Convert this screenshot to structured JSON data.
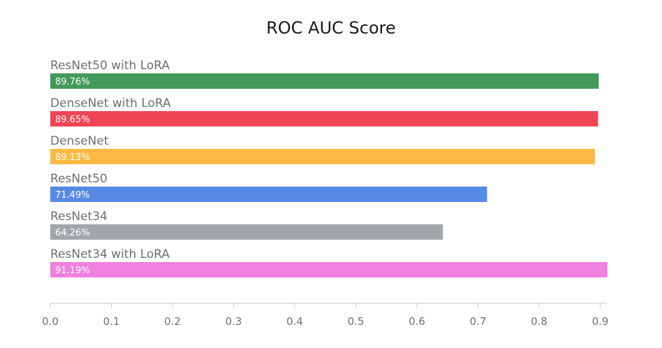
{
  "chart_data": {
    "type": "bar",
    "orientation": "horizontal",
    "title": "ROC AUC Score",
    "xlabel": "",
    "ylabel": "",
    "xlim": [
      0,
      0.91
    ],
    "grid": false,
    "categories": [
      "ResNet50 with LoRA",
      "DenseNet with LoRA",
      "DenseNet",
      "ResNet50",
      "ResNet34",
      "ResNet34 with LoRA"
    ],
    "values": [
      0.8976,
      0.8965,
      0.8913,
      0.7149,
      0.6426,
      0.9119
    ],
    "value_labels": [
      "89.76%",
      "89.65%",
      "89.13%",
      "71.49%",
      "64.26%",
      "91.19%"
    ],
    "colors": [
      "#43995a",
      "#ef4554",
      "#fcb941",
      "#568ae5",
      "#a3a7aa",
      "#ef80df"
    ],
    "x_ticks": [
      0,
      0.1,
      0.2,
      0.3,
      0.4,
      0.5,
      0.6,
      0.7,
      0.8,
      0.9
    ],
    "x_tick_labels": [
      "0.0",
      "0.1",
      "0.2",
      "0.3",
      "0.4",
      "0.5",
      "0.6",
      "0.7",
      "0.8",
      "0.9"
    ]
  }
}
